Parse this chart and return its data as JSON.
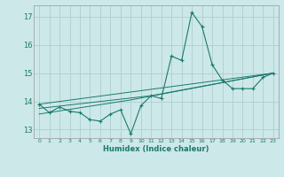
{
  "xlabel": "Humidex (Indice chaleur)",
  "background_color": "#cce8e8",
  "grid_color": "#b0cece",
  "line_color": "#1a7a6e",
  "xlim": [
    -0.5,
    23.5
  ],
  "ylim": [
    12.7,
    17.4
  ],
  "yticks": [
    13,
    14,
    15,
    16,
    17
  ],
  "xticks": [
    0,
    1,
    2,
    3,
    4,
    5,
    6,
    7,
    8,
    9,
    10,
    11,
    12,
    13,
    14,
    15,
    16,
    17,
    18,
    19,
    20,
    21,
    22,
    23
  ],
  "line1_x": [
    0,
    1,
    2,
    3,
    4,
    5,
    6,
    7,
    8,
    9,
    10,
    11,
    12,
    13,
    14,
    15,
    16,
    17,
    18,
    19,
    20,
    21,
    22,
    23
  ],
  "line1_y": [
    13.9,
    13.6,
    13.8,
    13.65,
    13.6,
    13.35,
    13.3,
    13.55,
    13.7,
    12.85,
    13.85,
    14.2,
    14.1,
    15.6,
    15.45,
    17.15,
    16.65,
    15.3,
    14.75,
    14.45,
    14.45,
    14.45,
    14.85,
    15.0
  ],
  "trend1_x": [
    0,
    23
  ],
  "trend1_y": [
    13.9,
    15.0
  ],
  "trend2_x": [
    0,
    11,
    23
  ],
  "trend2_y": [
    13.75,
    14.2,
    15.0
  ],
  "trend3_x": [
    0,
    9,
    23
  ],
  "trend3_y": [
    13.55,
    14.05,
    15.0
  ]
}
